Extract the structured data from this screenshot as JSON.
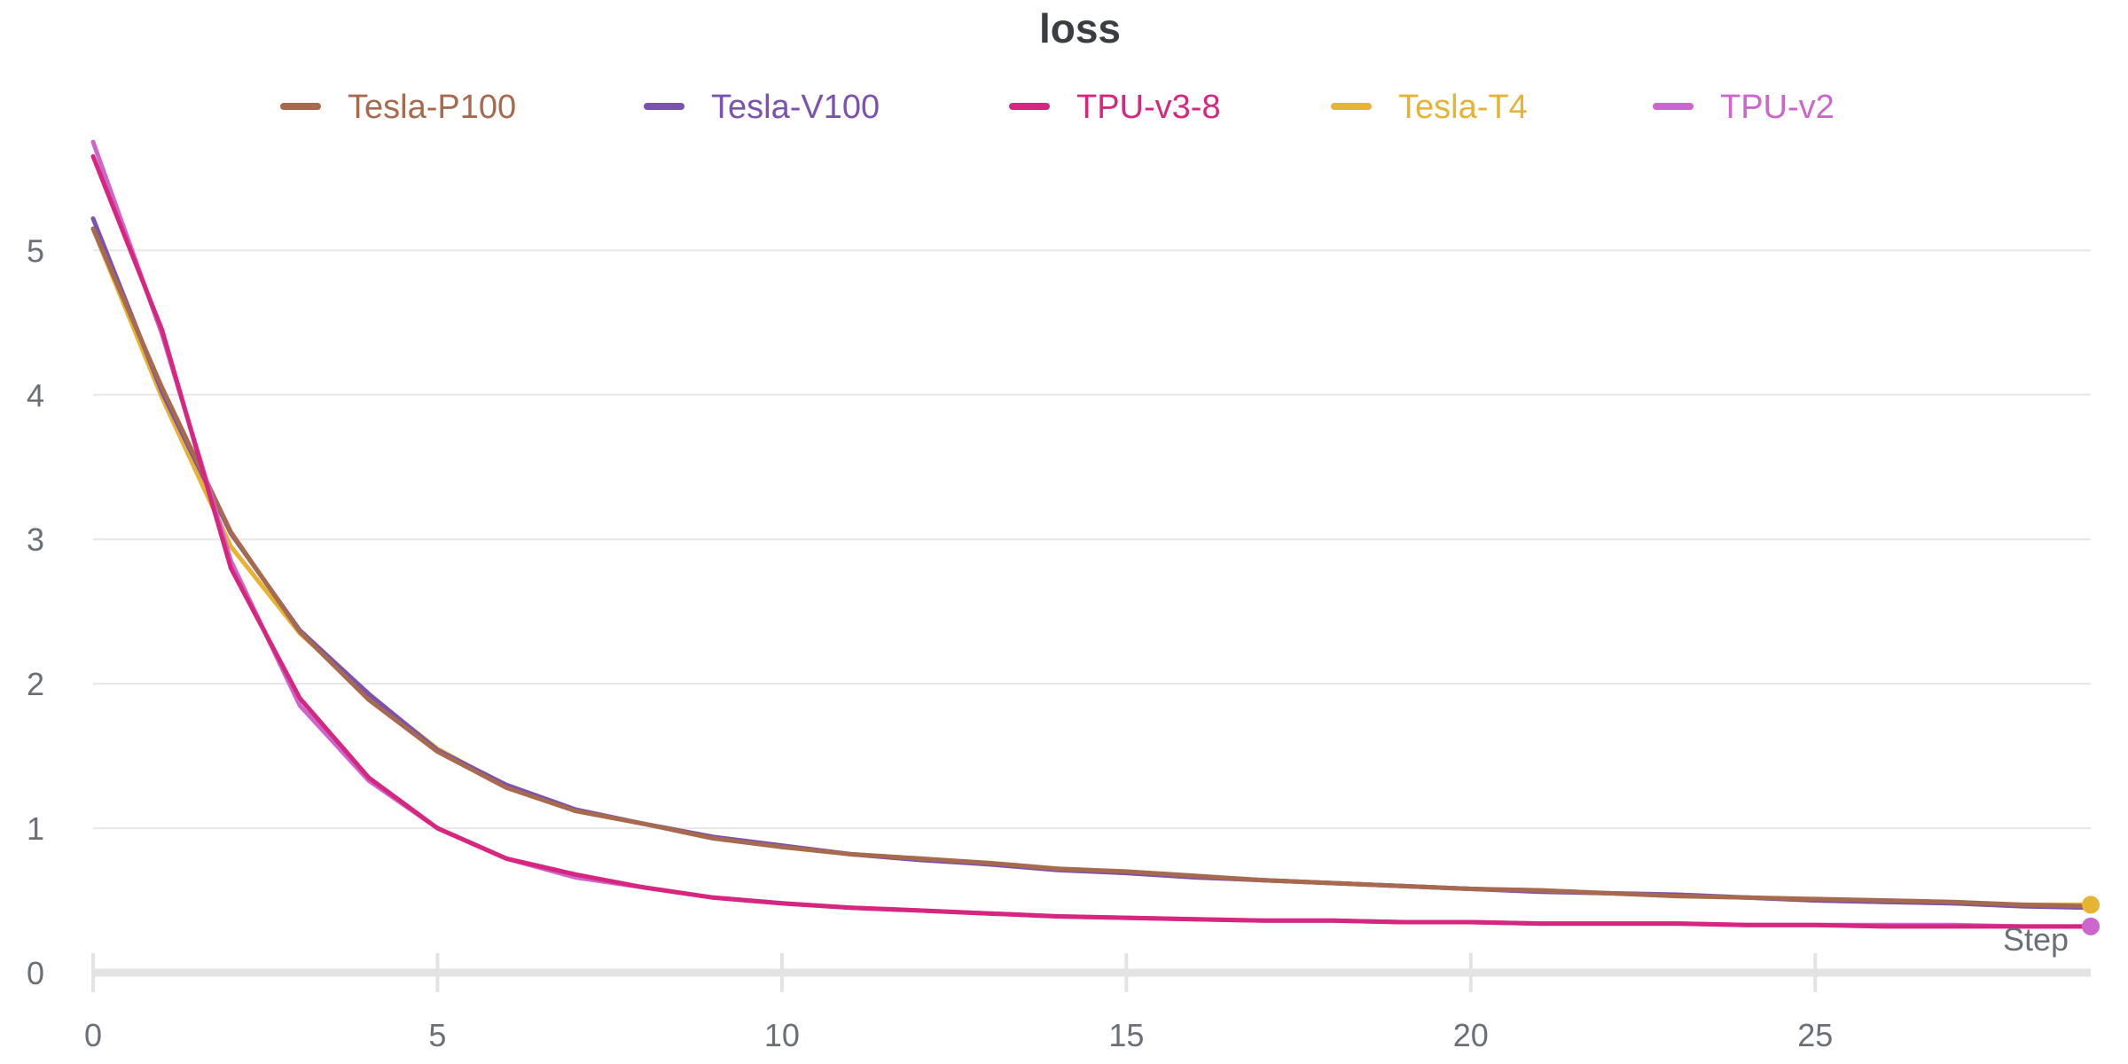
{
  "chart_data": {
    "type": "line",
    "title": "loss",
    "xlabel": "Step",
    "ylabel": "",
    "xlim": [
      0,
      29
    ],
    "ylim": [
      0,
      5.8
    ],
    "x_ticks": [
      0,
      5,
      10,
      15,
      20,
      25
    ],
    "y_ticks": [
      0,
      1,
      2,
      3,
      4,
      5
    ],
    "grid": true,
    "legend_position": "top",
    "x": [
      0,
      1,
      2,
      3,
      4,
      5,
      6,
      7,
      8,
      9,
      10,
      11,
      12,
      13,
      14,
      15,
      16,
      17,
      18,
      19,
      20,
      21,
      22,
      23,
      24,
      25,
      26,
      27,
      28,
      29
    ],
    "series": [
      {
        "name": "Tesla-T4",
        "color": "#e6b332",
        "values": [
          5.15,
          3.98,
          2.95,
          2.35,
          1.92,
          1.55,
          1.29,
          1.12,
          1.03,
          0.94,
          0.87,
          0.82,
          0.79,
          0.75,
          0.72,
          0.69,
          0.66,
          0.64,
          0.62,
          0.6,
          0.58,
          0.57,
          0.55,
          0.53,
          0.52,
          0.5,
          0.49,
          0.48,
          0.47,
          0.47
        ]
      },
      {
        "name": "Tesla-V100",
        "color": "#7b52b0",
        "values": [
          5.22,
          4.02,
          3.04,
          2.37,
          1.93,
          1.54,
          1.3,
          1.13,
          1.03,
          0.94,
          0.88,
          0.82,
          0.78,
          0.75,
          0.71,
          0.69,
          0.66,
          0.64,
          0.62,
          0.6,
          0.58,
          0.56,
          0.55,
          0.54,
          0.52,
          0.5,
          0.49,
          0.48,
          0.46,
          0.45
        ]
      },
      {
        "name": "Tesla-P100",
        "color": "#a86a4f",
        "values": [
          5.15,
          4.05,
          3.05,
          2.36,
          1.89,
          1.53,
          1.28,
          1.12,
          1.03,
          0.93,
          0.87,
          0.82,
          0.79,
          0.76,
          0.72,
          0.7,
          0.67,
          0.64,
          0.62,
          0.6,
          0.58,
          0.57,
          0.55,
          0.53,
          0.52,
          0.51,
          0.5,
          0.49,
          0.47,
          0.46
        ]
      },
      {
        "name": "TPU-v2",
        "color": "#cc66cc",
        "values": [
          5.75,
          4.42,
          2.85,
          1.85,
          1.33,
          1.0,
          0.79,
          0.66,
          0.59,
          0.52,
          0.48,
          0.45,
          0.43,
          0.41,
          0.39,
          0.38,
          0.37,
          0.36,
          0.36,
          0.35,
          0.35,
          0.34,
          0.34,
          0.34,
          0.33,
          0.33,
          0.33,
          0.33,
          0.32,
          0.32
        ]
      },
      {
        "name": "TPU-v3-8",
        "color": "#d6267f",
        "values": [
          5.65,
          4.45,
          2.8,
          1.9,
          1.35,
          1.0,
          0.79,
          0.68,
          0.59,
          0.52,
          0.48,
          0.45,
          0.43,
          0.41,
          0.39,
          0.38,
          0.37,
          0.36,
          0.36,
          0.35,
          0.35,
          0.34,
          0.34,
          0.34,
          0.33,
          0.33,
          0.32,
          0.32,
          0.32,
          0.32
        ]
      }
    ],
    "legend_order": [
      "Tesla-P100",
      "Tesla-V100",
      "TPU-v3-8",
      "Tesla-T4",
      "TPU-v2"
    ],
    "end_markers": [
      "Tesla-T4",
      "TPU-v2"
    ]
  }
}
